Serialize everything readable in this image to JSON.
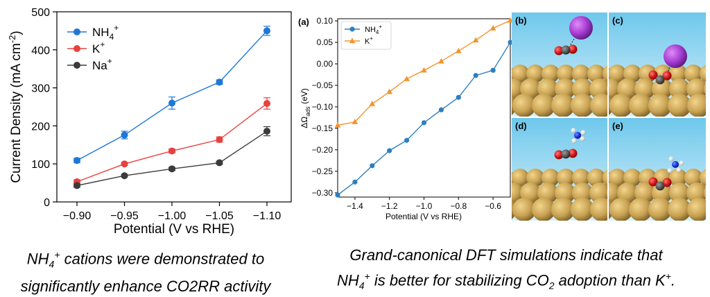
{
  "chart_data": [
    {
      "type": "line",
      "panel": "left",
      "xlabel": "Potential (V vs RHE)",
      "ylabel": "Current Density (mA cm",
      "ylabel_sup": "-2",
      "ylabel_end": ")",
      "x": [
        -0.9,
        -0.95,
        -1.0,
        -1.05,
        -1.1
      ],
      "xticks": [
        "-0.90",
        "-0.95",
        "-1.00",
        "-1.05",
        "-1.10"
      ],
      "yticks": [
        "0",
        "100",
        "200",
        "300",
        "400",
        "500"
      ],
      "ylim": [
        0,
        500
      ],
      "legend_placement": "top-left",
      "series": [
        {
          "name": "NH",
          "sub": "4",
          "sup": "+",
          "color": "#1f77d8",
          "values": [
            109,
            176,
            260,
            315,
            450
          ],
          "errors": [
            6,
            10,
            16,
            6,
            12
          ]
        },
        {
          "name": "K",
          "sub": "",
          "sup": "+",
          "color": "#e8413d",
          "values": [
            53,
            100,
            134,
            164,
            259
          ],
          "errors": [
            5,
            4,
            5,
            7,
            15
          ]
        },
        {
          "name": "Na",
          "sub": "",
          "sup": "+",
          "color": "#3b3b3b",
          "values": [
            43,
            69,
            87,
            103,
            186
          ],
          "errors": [
            4,
            3,
            4,
            4,
            12
          ]
        }
      ]
    },
    {
      "type": "line",
      "panel": "(a)",
      "xlabel": "Potential (V vs RHE)",
      "ylabel": "ΔΩ",
      "ylabel_sub": "ads",
      "ylabel_end": " (eV)",
      "xlim": [
        -1.5,
        -0.5
      ],
      "ylim": [
        -0.31,
        0.105
      ],
      "xticks": [
        "-1.4",
        "-1.2",
        "-1.0",
        "-0.8",
        "-0.6"
      ],
      "yticks": [
        "0.10",
        "0.05",
        "0.00",
        "-0.05",
        "-0.10",
        "-0.15",
        "-0.20",
        "-0.25",
        "-0.30"
      ],
      "legend_placement": "top-left",
      "series": [
        {
          "name": "NH",
          "sub": "4",
          "sup": "+",
          "color": "#2d7fc1",
          "marker": "circle",
          "x": [
            -1.5,
            -1.4,
            -1.3,
            -1.2,
            -1.1,
            -1.0,
            -0.9,
            -0.8,
            -0.7,
            -0.6,
            -0.5
          ],
          "values": [
            -0.305,
            -0.275,
            -0.237,
            -0.202,
            -0.178,
            -0.137,
            -0.107,
            -0.078,
            -0.027,
            -0.015,
            0.05
          ]
        },
        {
          "name": "K",
          "sub": "",
          "sup": "+",
          "color": "#f5932a",
          "marker": "triangle",
          "x": [
            -1.5,
            -1.4,
            -1.3,
            -1.2,
            -1.1,
            -1.0,
            -0.9,
            -0.8,
            -0.7,
            -0.6,
            -0.5
          ],
          "values": [
            -0.143,
            -0.135,
            -0.093,
            -0.065,
            -0.035,
            -0.015,
            0.006,
            0.03,
            0.055,
            0.083,
            0.101
          ]
        }
      ]
    }
  ],
  "panels": {
    "b": "(b)",
    "c": "(c)",
    "d": "(d)",
    "e": "(e)"
  },
  "colors": {
    "sky_top": "#6ec8ec",
    "sky_bottom": "#d9f0fa",
    "gold": "#c8a253",
    "cation_purple": "#a23ad0",
    "oxygen_red": "#d41313",
    "carbon_grey": "#555555",
    "nitrogen_blue": "#1c2fd8",
    "hydrogen_white": "#e4e4e4"
  },
  "captions": {
    "left_part1": "NH",
    "left_sub": "4",
    "left_sup": "+",
    "left_part2": " cations were demonstrated to",
    "left_line2": "significantly enhance CO2RR activity",
    "right_line1": "Grand-canonical DFT simulations indicate that",
    "right_part1": "NH",
    "right_sub": "4",
    "right_sup": "+",
    "right_part2": " is better for stabilizing CO",
    "right_sub2": "2",
    "right_part3": " adoption than K",
    "right_sup2": "+",
    "right_part4": "."
  }
}
